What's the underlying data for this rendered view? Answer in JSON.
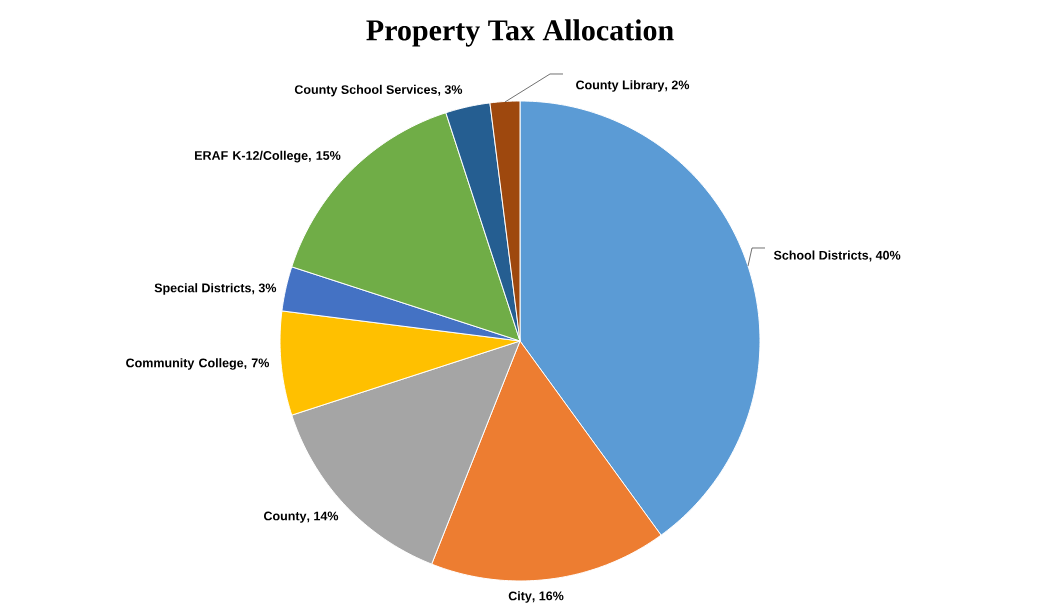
{
  "chart_data": {
    "type": "pie",
    "title": "Property Tax Allocation",
    "categories": [
      "School Districts",
      "City",
      "County",
      "Community College",
      "Special Districts",
      "ERAF K-12/College",
      "County School Services",
      "County Library"
    ],
    "values": [
      40,
      16,
      14,
      7,
      3,
      15,
      3,
      2
    ],
    "colors": [
      "#5b9bd5",
      "#ed7d31",
      "#a5a5a5",
      "#ffc000",
      "#4472c4",
      "#70ad47",
      "#255e91",
      "#9e480e"
    ],
    "value_labels": [
      ", 40%",
      ", 16%",
      ", 14%",
      ", 7%",
      ", 3%",
      ", 15%",
      ", 3%",
      ", 2%"
    ]
  }
}
